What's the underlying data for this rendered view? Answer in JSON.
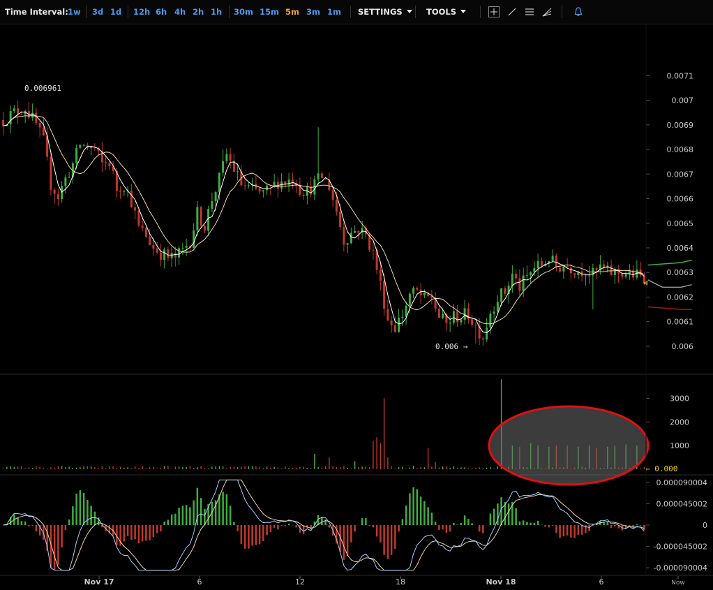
{
  "toolbar": {
    "label": "Time Interval:",
    "intervals": [
      "1w",
      "3d",
      "1d",
      "12h",
      "6h",
      "4h",
      "2h",
      "1h",
      "30m",
      "15m",
      "5m",
      "3m",
      "1m"
    ],
    "active_interval": "5m",
    "settings_label": "SETTINGS",
    "tools_label": "TOOLS"
  },
  "colors": {
    "up": "#3fae3f",
    "down": "#c0392b",
    "ma_fast": "#ffffff",
    "ma_slow": "#f3d6a2",
    "accent": "#4a9be8",
    "highlight_ellipse": "#e01010"
  },
  "chart_data": [
    {
      "type": "candlestick",
      "name": "price",
      "y_ticks": [
        "0.0071",
        "0.007",
        "0.0069",
        "0.0068",
        "0.0067",
        "0.0066",
        "0.0065",
        "0.0064",
        "0.0063",
        "0.0062",
        "0.0061",
        "0.006"
      ],
      "ylim": [
        0.00596,
        0.00726
      ],
      "x_ticks": [
        "Nov 17",
        "6",
        "12",
        "18",
        "Nov 18",
        "6",
        "Now"
      ],
      "high_annotation": "0.006961",
      "low_annotation": "0.006 →",
      "close_points": [
        [
          0,
          0.00692
        ],
        [
          3,
          0.00695
        ],
        [
          6,
          0.00697
        ],
        [
          9,
          0.0069
        ],
        [
          11,
          0.00683
        ],
        [
          13,
          0.00666
        ],
        [
          15,
          0.00661
        ],
        [
          17,
          0.00668
        ],
        [
          19,
          0.00674
        ],
        [
          21,
          0.00682
        ],
        [
          23,
          0.00681
        ],
        [
          25,
          0.0068
        ],
        [
          27,
          0.00674
        ],
        [
          29,
          0.00675
        ],
        [
          31,
          0.00664
        ],
        [
          33,
          0.00666
        ],
        [
          35,
          0.00659
        ],
        [
          37,
          0.00648
        ],
        [
          39,
          0.00645
        ],
        [
          41,
          0.0064
        ],
        [
          43,
          0.00638
        ],
        [
          45,
          0.00636
        ],
        [
          47,
          0.00636
        ],
        [
          49,
          0.00639
        ],
        [
          51,
          0.00643
        ],
        [
          53,
          0.00654
        ],
        [
          55,
          0.00649
        ],
        [
          57,
          0.0066
        ],
        [
          59,
          0.00668
        ],
        [
          61,
          0.00678
        ],
        [
          63,
          0.00672
        ],
        [
          65,
          0.00666
        ],
        [
          67,
          0.00664
        ],
        [
          69,
          0.00663
        ],
        [
          71,
          0.00662
        ],
        [
          73,
          0.00664
        ],
        [
          75,
          0.00667
        ],
        [
          77,
          0.00667
        ],
        [
          79,
          0.00668
        ],
        [
          80,
          0.00667
        ],
        [
          81,
          0.00664
        ],
        [
          83,
          0.00663
        ],
        [
          85,
          0.00666
        ],
        [
          87,
          0.00669
        ],
        [
          89,
          0.00665
        ],
        [
          91,
          0.00655
        ],
        [
          93,
          0.00643
        ],
        [
          95,
          0.00646
        ],
        [
          97,
          0.00648
        ],
        [
          99,
          0.00645
        ],
        [
          101,
          0.00638
        ],
        [
          103,
          0.00625
        ],
        [
          105,
          0.00611
        ],
        [
          107,
          0.00608
        ],
        [
          109,
          0.00613
        ],
        [
          111,
          0.00621
        ],
        [
          113,
          0.00622
        ],
        [
          115,
          0.00619
        ],
        [
          117,
          0.0062
        ],
        [
          119,
          0.00612
        ],
        [
          121,
          0.00609
        ],
        [
          123,
          0.00612
        ],
        [
          125,
          0.00612
        ],
        [
          127,
          0.00613
        ],
        [
          129,
          0.00608
        ],
        [
          131,
          0.00604
        ],
        [
          133,
          0.00614
        ],
        [
          135,
          0.0062
        ],
        [
          137,
          0.00622
        ],
        [
          139,
          0.00629
        ],
        [
          141,
          0.00624
        ],
        [
          143,
          0.00628
        ],
        [
          145,
          0.00632
        ],
        [
          147,
          0.00633
        ],
        [
          149,
          0.00636
        ],
        [
          151,
          0.00632
        ],
        [
          153,
          0.00633
        ],
        [
          155,
          0.00632
        ],
        [
          157,
          0.00631
        ],
        [
          159,
          0.00631
        ],
        [
          161,
          0.00629
        ],
        [
          163,
          0.00632
        ],
        [
          165,
          0.0063
        ],
        [
          167,
          0.0063
        ],
        [
          169,
          0.0063
        ],
        [
          171,
          0.00629
        ],
        [
          173,
          0.00629
        ],
        [
          175,
          0.00627
        ]
      ],
      "spike_highs": [
        [
          86,
          0.00689
        ],
        [
          60,
          0.0068
        ],
        [
          111,
          0.00622
        ],
        [
          164,
          0.00635
        ]
      ],
      "spike_lows": [
        [
          161,
          0.00615
        ],
        [
          129,
          0.00601
        ]
      ],
      "projection_lines": [
        {
          "color": "#3fae3f",
          "points": [
            [
              176,
              0.00633
            ],
            [
              185,
              0.00634
            ],
            [
              188,
              0.00635
            ]
          ]
        },
        {
          "color": "#9a9a9a",
          "points": [
            [
              176,
              0.00627
            ],
            [
              180,
              0.00624
            ],
            [
              185,
              0.00624
            ],
            [
              188,
              0.00625
            ]
          ]
        },
        {
          "color": "#a11a1a",
          "points": [
            [
              176,
              0.00616
            ],
            [
              185,
              0.00615
            ],
            [
              188,
              0.00615
            ]
          ]
        }
      ]
    },
    {
      "type": "bar",
      "name": "volume",
      "y_ticks": [
        "3000",
        "2000",
        "1000"
      ],
      "ylim": [
        0,
        3900
      ],
      "last_value_label": "← 0.000",
      "large_bars": [
        [
          101,
          1200
        ],
        [
          102,
          1350
        ],
        [
          103,
          1100
        ],
        [
          104,
          3000
        ],
        [
          105,
          500
        ],
        [
          85,
          650
        ],
        [
          89,
          500
        ],
        [
          96,
          350
        ],
        [
          116,
          900
        ],
        [
          118,
          300
        ],
        [
          136,
          3800
        ],
        [
          139,
          1000
        ],
        [
          141,
          950
        ],
        [
          144,
          1100
        ],
        [
          146,
          1000
        ],
        [
          149,
          950
        ],
        [
          151,
          1000
        ],
        [
          154,
          1000
        ],
        [
          157,
          950
        ],
        [
          160,
          1000
        ],
        [
          162,
          900
        ],
        [
          165,
          950
        ],
        [
          167,
          1000
        ],
        [
          170,
          1050
        ],
        [
          173,
          1000
        ]
      ]
    },
    {
      "type": "histogram",
      "name": "macd",
      "y_ticks": [
        "0.000090004",
        "0.000045002",
        "0",
        "-0.000045002",
        "-0.000090004"
      ],
      "ylim": [
        -0.0001,
        0.0001
      ]
    }
  ]
}
